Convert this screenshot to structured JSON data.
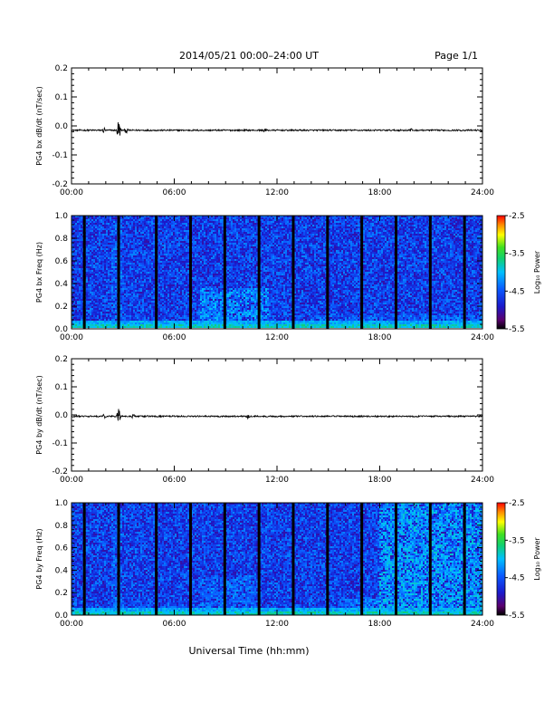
{
  "header": {
    "title": "2014/05/21  00:00–24:00 UT",
    "page": "Page 1/1"
  },
  "xlabel": "Universal Time (hh:mm)",
  "chart_data": [
    {
      "type": "line",
      "ylabel": "PG4 bx dB/dt (nT/sec)",
      "xlim": [
        0,
        24
      ],
      "ylim": [
        -0.2,
        0.2
      ],
      "x_ticks": [
        "00:00",
        "06:00",
        "12:00",
        "18:00",
        "24:00"
      ],
      "y_ticks": [
        "-0.2",
        "-0.1",
        "0.0",
        "0.1",
        "0.2"
      ],
      "baseline": -0.015,
      "bursts": [
        {
          "x": 1.9,
          "amp": 0.012
        },
        {
          "x": 2.75,
          "amp": 0.045
        },
        {
          "x": 3.2,
          "amp": 0.012
        },
        {
          "x": 11.3,
          "amp": 0.01
        },
        {
          "x": 19.8,
          "amp": 0.01
        }
      ]
    },
    {
      "type": "heatmap",
      "ylabel": "PG4 bx Freq (Hz)",
      "xlim": [
        0,
        24
      ],
      "ylim": [
        0,
        1.0
      ],
      "x_ticks": [
        "00:00",
        "06:00",
        "12:00",
        "18:00",
        "24:00"
      ],
      "y_ticks": [
        "0.0",
        "0.2",
        "0.4",
        "0.6",
        "0.8",
        "1.0"
      ],
      "colorbar": {
        "label": "Log₁₀ Power",
        "ticks": [
          "-2.5",
          "-3.5",
          "-4.5",
          "-5.5"
        ],
        "range": [
          -5.5,
          -2.5
        ]
      },
      "gaps_hours": [
        0.75,
        2.75,
        4.95,
        6.95,
        8.95,
        10.95,
        12.95,
        14.95,
        16.95,
        18.95,
        20.95,
        22.95
      ],
      "green_regions": [
        {
          "x0": 2.3,
          "x1": 3.0,
          "f0": 0.0,
          "f1": 0.95,
          "p": -4.3
        },
        {
          "x0": 7.5,
          "x1": 11.5,
          "f0": 0.0,
          "f1": 0.35,
          "p": -4.1
        },
        {
          "x0": 14.0,
          "x1": 24.0,
          "f0": 0.0,
          "f1": 0.12,
          "p": -4.3
        }
      ]
    },
    {
      "type": "line",
      "ylabel": "PG4 by dB/dt (nT/sec)",
      "xlim": [
        0,
        24
      ],
      "ylim": [
        -0.2,
        0.2
      ],
      "x_ticks": [
        "00:00",
        "06:00",
        "12:00",
        "18:00",
        "24:00"
      ],
      "y_ticks": [
        "-0.2",
        "-0.1",
        "0.0",
        "0.1",
        "0.2"
      ],
      "baseline": -0.005,
      "bursts": [
        {
          "x": 1.9,
          "amp": 0.01
        },
        {
          "x": 2.75,
          "amp": 0.04
        },
        {
          "x": 3.6,
          "amp": 0.01
        },
        {
          "x": 10.3,
          "amp": 0.01
        }
      ]
    },
    {
      "type": "heatmap",
      "ylabel": "PG4 by Freq (Hz)",
      "xlim": [
        0,
        24
      ],
      "ylim": [
        0,
        1.0
      ],
      "x_ticks": [
        "00:00",
        "06:00",
        "12:00",
        "18:00",
        "24:00"
      ],
      "y_ticks": [
        "0.0",
        "0.2",
        "0.4",
        "0.6",
        "0.8",
        "1.0"
      ],
      "colorbar": {
        "label": "Log₁₀ Power",
        "ticks": [
          "-2.5",
          "-3.5",
          "-4.5",
          "-5.5"
        ],
        "range": [
          -5.5,
          -2.5
        ]
      },
      "gaps_hours": [
        0.75,
        2.75,
        4.95,
        6.95,
        8.95,
        10.95,
        12.95,
        14.95,
        16.95,
        18.95,
        20.95,
        22.95
      ],
      "green_regions": [
        {
          "x0": 2.3,
          "x1": 3.0,
          "f0": 0.0,
          "f1": 0.95,
          "p": -4.3
        },
        {
          "x0": 7.5,
          "x1": 10.8,
          "f0": 0.0,
          "f1": 0.35,
          "p": -4.3
        },
        {
          "x0": 18.0,
          "x1": 24.0,
          "f0": 0.0,
          "f1": 1.0,
          "p": -4.0
        },
        {
          "x0": 16.0,
          "x1": 18.0,
          "f0": 0.0,
          "f1": 0.15,
          "p": -4.2
        }
      ]
    }
  ]
}
